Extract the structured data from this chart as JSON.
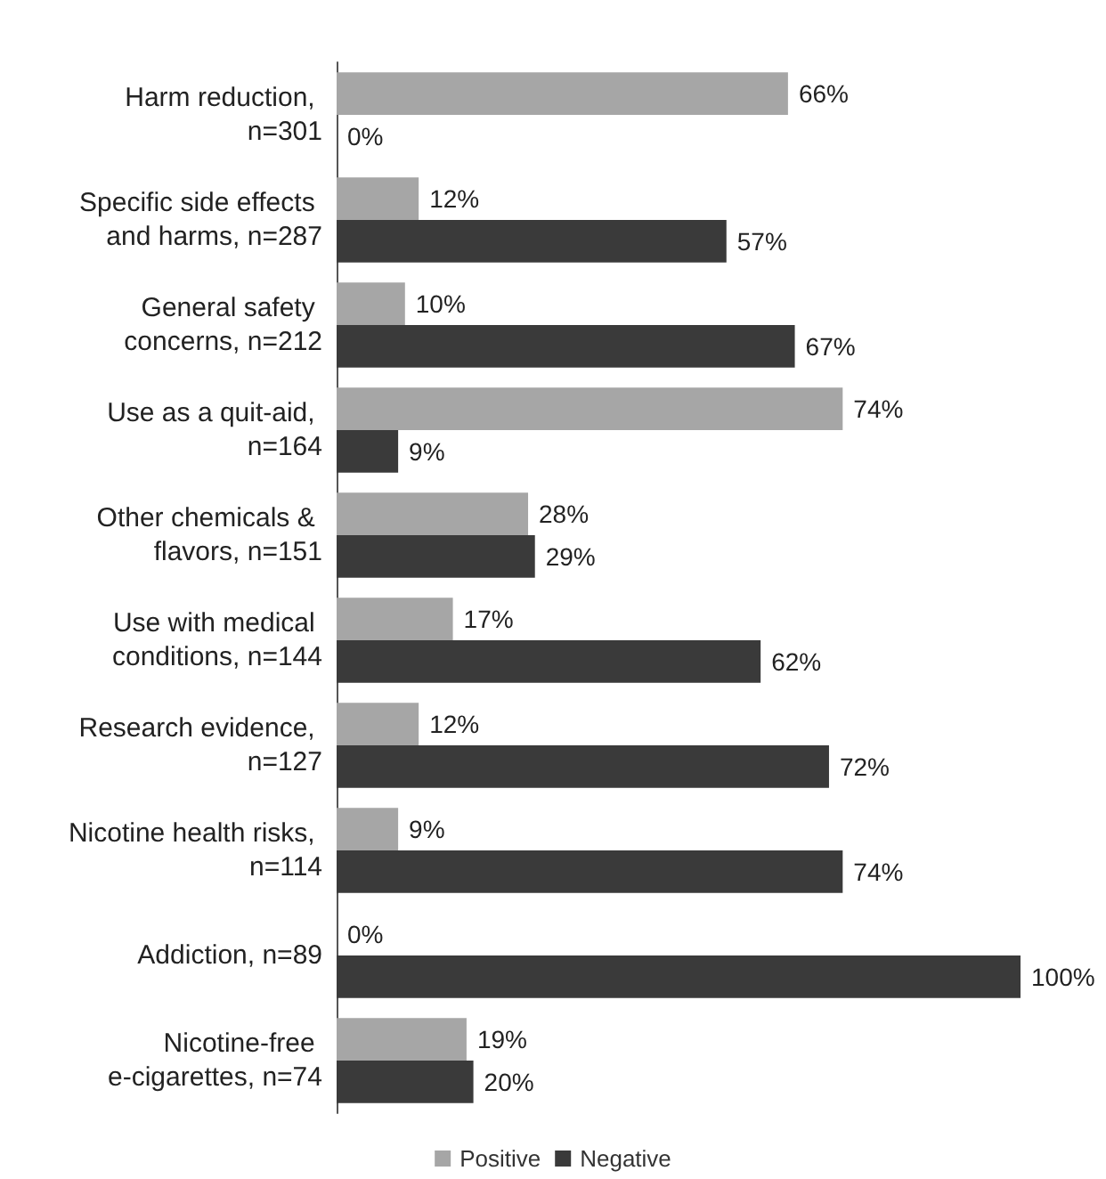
{
  "chart_data": {
    "type": "bar",
    "orientation": "horizontal",
    "categories": [
      "Harm reduction, n=301",
      "Specific side effects and harms, n=287",
      "General safety concerns, n=212",
      "Use as a quit-aid, n=164",
      "Other chemicals & flavors, n=151",
      "Use with medical conditions, n=144",
      "Research evidence, n=127",
      "Nicotine health risks, n=114",
      "Addiction, n=89",
      "Nicotine-free e-cigarettes, n=74"
    ],
    "series": [
      {
        "name": "Positive",
        "color": "#a6a6a6",
        "values": [
          66,
          12,
          10,
          74,
          28,
          17,
          12,
          9,
          0,
          19
        ],
        "value_labels": [
          "66%",
          "12%",
          "10%",
          "74%",
          "28%",
          "17%",
          "12%",
          "9%",
          "0%",
          "19%"
        ]
      },
      {
        "name": "Negative",
        "color": "#3a3a3a",
        "values": [
          0,
          57,
          67,
          9,
          29,
          62,
          72,
          74,
          100,
          20
        ],
        "value_labels": [
          "0%",
          "57%",
          "67%",
          "9%",
          "29%",
          "62%",
          "72%",
          "74%",
          "100%",
          "20%"
        ]
      }
    ],
    "legend": "bottom"
  }
}
